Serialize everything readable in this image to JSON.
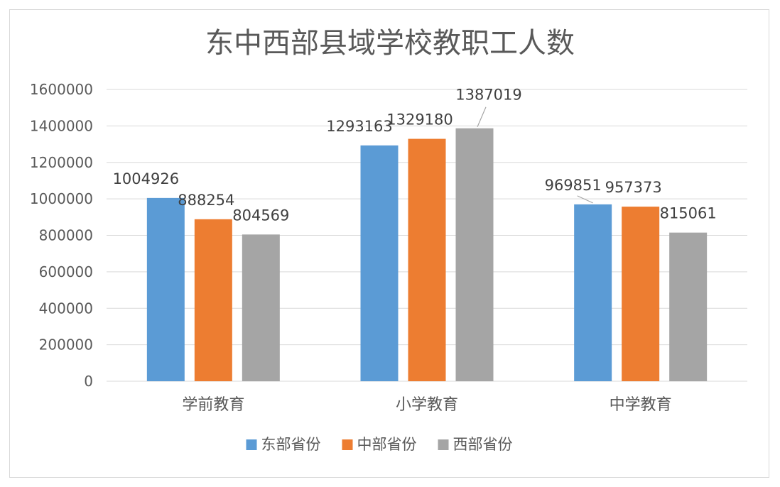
{
  "chart_data": {
    "type": "bar",
    "title": "东中西部县域学校教职工人数",
    "categories": [
      "学前教育",
      "小学教育",
      "中学教育"
    ],
    "series": [
      {
        "name": "东部省份",
        "color": "#5b9bd5",
        "values": [
          1004926,
          1293163,
          969851
        ]
      },
      {
        "name": "中部省份",
        "color": "#ed7d31",
        "values": [
          888254,
          1329180,
          957373
        ]
      },
      {
        "name": "西部省份",
        "color": "#a5a5a5",
        "values": [
          804569,
          1387019,
          815061
        ]
      }
    ],
    "ylim": [
      0,
      1600000
    ],
    "yticks": [
      0,
      200000,
      400000,
      600000,
      800000,
      1000000,
      1200000,
      1400000,
      1600000
    ],
    "ytick_labels": [
      "0",
      "200000",
      "400000",
      "600000",
      "800000",
      "1000000",
      "1200000",
      "1400000",
      "1600000"
    ],
    "grid": true,
    "legend_position": "bottom",
    "data_labels": true
  }
}
